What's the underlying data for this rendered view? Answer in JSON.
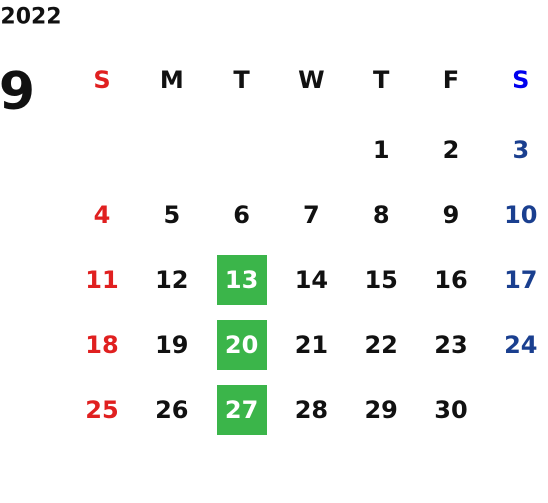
{
  "year": "2022",
  "month": "9",
  "weekdays": [
    "S",
    "M",
    "T",
    "W",
    "T",
    "F",
    "S"
  ],
  "weeks": [
    [
      null,
      null,
      null,
      null,
      1,
      2,
      3
    ],
    [
      4,
      5,
      6,
      7,
      8,
      9,
      10
    ],
    [
      11,
      12,
      13,
      14,
      15,
      16,
      17
    ],
    [
      18,
      19,
      20,
      21,
      22,
      23,
      24
    ],
    [
      25,
      26,
      27,
      28,
      29,
      30,
      null
    ]
  ],
  "highlighted": [
    13,
    20,
    27
  ],
  "colors": {
    "sunday": "#e02020",
    "saturday_header": "#0000ee",
    "saturday": "#1a3f8f",
    "highlight": "#3bb54a",
    "highlight_text": "#ffffff",
    "text": "#111111"
  }
}
